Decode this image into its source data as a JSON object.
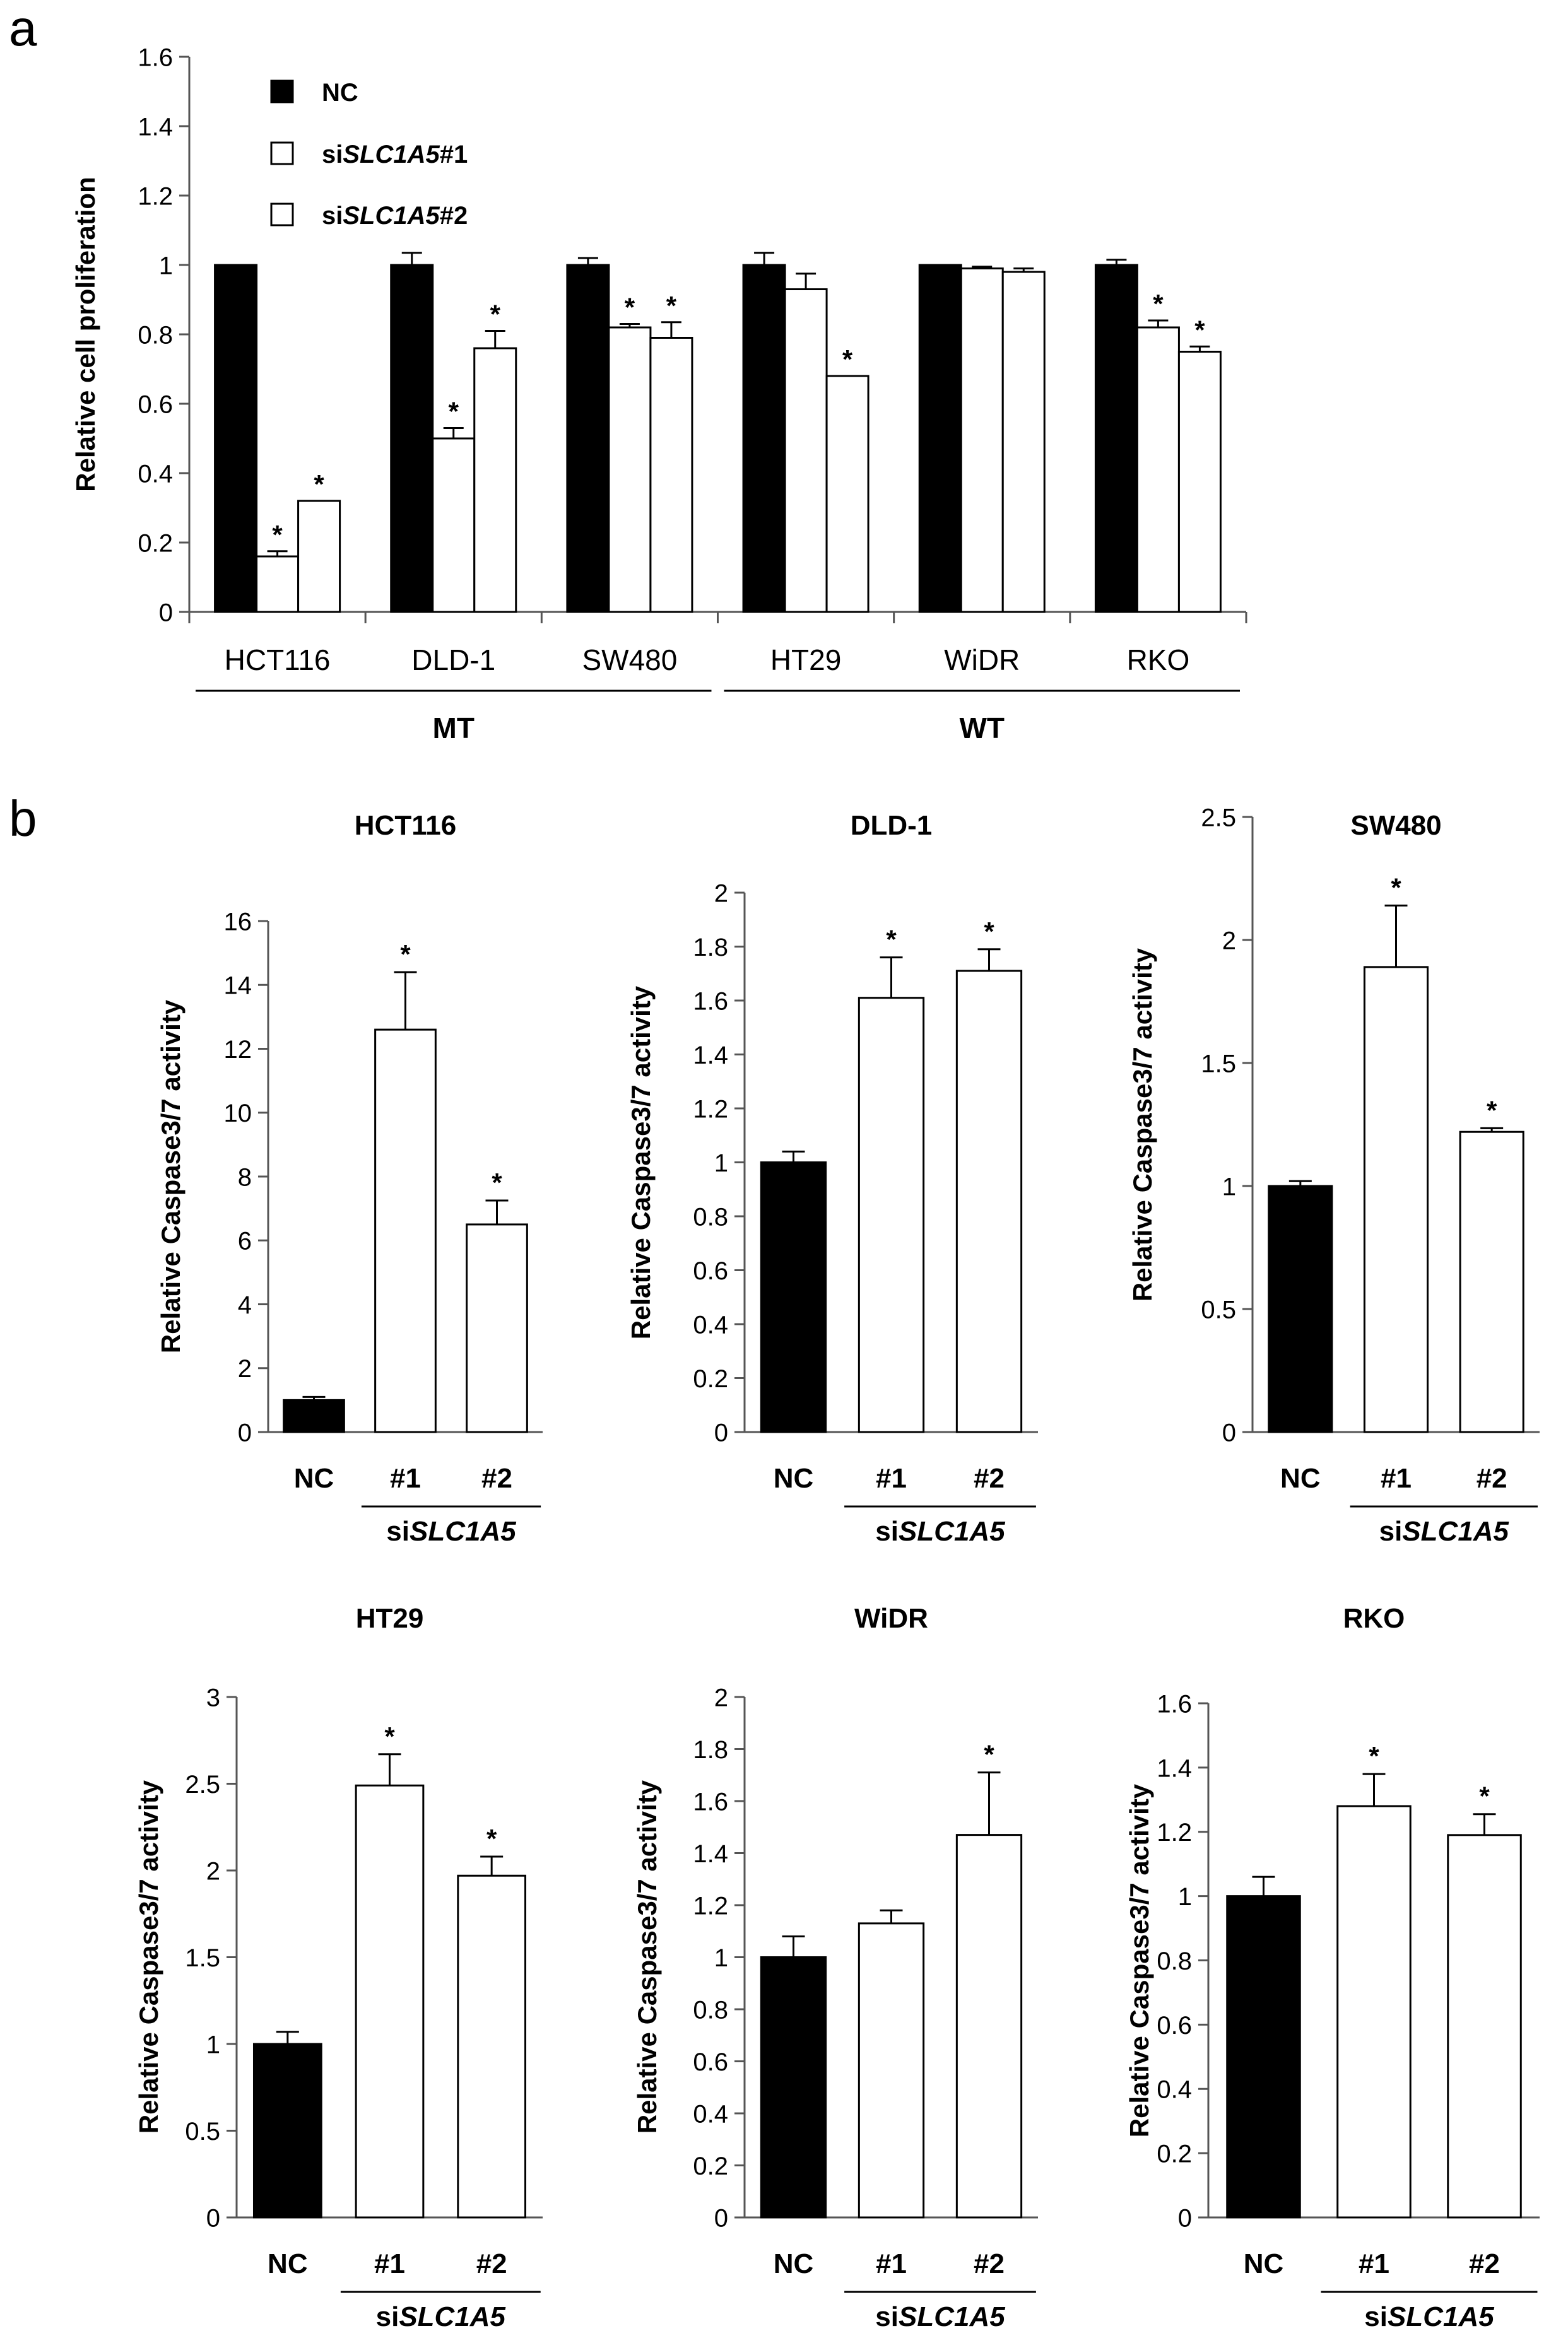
{
  "panel_labels": [
    "a",
    "b"
  ],
  "colors": {
    "nc": "#000000",
    "si": "#ffffff",
    "stroke": "#000000",
    "axis": "#555555"
  },
  "chart_data": [
    {
      "type": "bar",
      "panel": "a",
      "title": "",
      "ylabel": "Relative cell proliferation",
      "xlabel": "",
      "ylim": [
        0,
        1.6
      ],
      "yticks": [
        "0",
        "0.2",
        "0.4",
        "0.6",
        "0.8",
        "1",
        "1.2",
        "1.4",
        "1.6"
      ],
      "categories": [
        "HCT116",
        "DLD-1",
        "SW480",
        "HT29",
        "WiDR",
        "RKO"
      ],
      "groups": [
        {
          "label": "MT",
          "from": 0,
          "to": 2
        },
        {
          "label": "WT",
          "from": 3,
          "to": 5
        }
      ],
      "legend": {
        "position": "top-left",
        "entries": [
          {
            "prefix": "NC",
            "italic": "",
            "suffix": ""
          },
          {
            "prefix": "si",
            "italic": "SLC1A5",
            "suffix": "#1"
          },
          {
            "prefix": "si",
            "italic": "SLC1A5",
            "suffix": "#2"
          }
        ]
      },
      "series": [
        {
          "name": "NC",
          "values": [
            1.0,
            1.0,
            1.0,
            1.0,
            1.0,
            1.0
          ],
          "errors": [
            0.0,
            0.035,
            0.02,
            0.035,
            0.0,
            0.015
          ],
          "significant": [
            false,
            false,
            false,
            false,
            false,
            false
          ]
        },
        {
          "name": "siSLC1A5#1",
          "values": [
            0.16,
            0.5,
            0.82,
            0.93,
            0.99,
            0.82
          ],
          "errors": [
            0.015,
            0.03,
            0.01,
            0.045,
            0.005,
            0.02
          ],
          "significant": [
            true,
            true,
            true,
            false,
            false,
            true
          ]
        },
        {
          "name": "siSLC1A5#2",
          "values": [
            0.32,
            0.76,
            0.79,
            0.68,
            0.98,
            0.75
          ],
          "errors": [
            0.0,
            0.05,
            0.045,
            0.0,
            0.01,
            0.015
          ],
          "significant": [
            true,
            true,
            true,
            true,
            false,
            true
          ]
        }
      ]
    },
    {
      "type": "bar",
      "panel": "b",
      "title": "HCT116",
      "ylabel": "Relative Caspase3/7 activity",
      "ylim": [
        0,
        16
      ],
      "yticks": [
        "0",
        "2",
        "4",
        "6",
        "8",
        "10",
        "12",
        "14",
        "16"
      ],
      "categories": [
        "NC",
        "#1",
        "#2"
      ],
      "group_label": {
        "prefix": "si",
        "italic": "SLC1A5"
      },
      "values": [
        1.0,
        12.6,
        6.5
      ],
      "errors": [
        0.1,
        1.8,
        0.75
      ],
      "significant": [
        false,
        true,
        true
      ]
    },
    {
      "type": "bar",
      "panel": "b",
      "title": "DLD-1",
      "ylabel": "Relative Caspase3/7 activity",
      "ylim": [
        0,
        2
      ],
      "yticks": [
        "0",
        "0.2",
        "0.4",
        "0.6",
        "0.8",
        "1",
        "1.2",
        "1.4",
        "1.6",
        "1.8",
        "2"
      ],
      "categories": [
        "NC",
        "#1",
        "#2"
      ],
      "group_label": {
        "prefix": "si",
        "italic": "SLC1A5"
      },
      "values": [
        1.0,
        1.61,
        1.71
      ],
      "errors": [
        0.04,
        0.15,
        0.08
      ],
      "significant": [
        false,
        true,
        true
      ]
    },
    {
      "type": "bar",
      "panel": "b",
      "title": "SW480",
      "ylabel": "Relative Caspase3/7 activity",
      "ylim": [
        0,
        2.5
      ],
      "yticks": [
        "0",
        "0.5",
        "1",
        "1.5",
        "2",
        "2.5"
      ],
      "categories": [
        "NC",
        "#1",
        "#2"
      ],
      "group_label": {
        "prefix": "si",
        "italic": "SLC1A5"
      },
      "values": [
        1.0,
        1.89,
        1.22
      ],
      "errors": [
        0.02,
        0.25,
        0.015
      ],
      "significant": [
        false,
        true,
        true
      ]
    },
    {
      "type": "bar",
      "panel": "b",
      "title": "HT29",
      "ylabel": "Relative Caspase3/7 activity",
      "ylim": [
        0,
        3
      ],
      "yticks": [
        "0",
        "0.5",
        "1",
        "1.5",
        "2",
        "2.5",
        "3"
      ],
      "categories": [
        "NC",
        "#1",
        "#2"
      ],
      "group_label": {
        "prefix": "si",
        "italic": "SLC1A5"
      },
      "values": [
        1.0,
        2.49,
        1.97
      ],
      "errors": [
        0.07,
        0.18,
        0.11
      ],
      "significant": [
        false,
        true,
        true
      ]
    },
    {
      "type": "bar",
      "panel": "b",
      "title": "WiDR",
      "ylabel": "Relative Caspase3/7 activity",
      "ylim": [
        0,
        2
      ],
      "yticks": [
        "0",
        "0.2",
        "0.4",
        "0.6",
        "0.8",
        "1",
        "1.2",
        "1.4",
        "1.6",
        "1.8",
        "2"
      ],
      "categories": [
        "NC",
        "#1",
        "#2"
      ],
      "group_label": {
        "prefix": "si",
        "italic": "SLC1A5"
      },
      "values": [
        1.0,
        1.13,
        1.47
      ],
      "errors": [
        0.08,
        0.05,
        0.24
      ],
      "significant": [
        false,
        false,
        true
      ]
    },
    {
      "type": "bar",
      "panel": "b",
      "title": "RKO",
      "ylabel": "Relative Caspase3/7 activity",
      "ylim": [
        0,
        1.6
      ],
      "yticks": [
        "0",
        "0.2",
        "0.4",
        "0.6",
        "0.8",
        "1",
        "1.2",
        "1.4",
        "1.6"
      ],
      "categories": [
        "NC",
        "#1",
        "#2"
      ],
      "group_label": {
        "prefix": "si",
        "italic": "SLC1A5"
      },
      "values": [
        1.0,
        1.28,
        1.19
      ],
      "errors": [
        0.06,
        0.1,
        0.065
      ],
      "significant": [
        false,
        true,
        true
      ]
    }
  ]
}
